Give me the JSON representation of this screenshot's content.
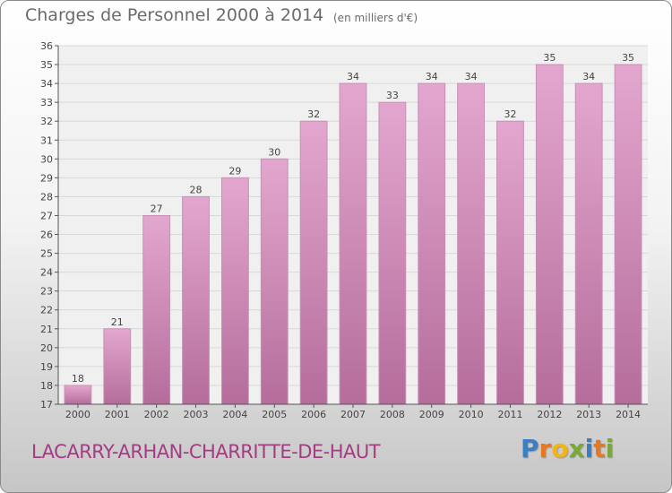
{
  "header": {
    "title": "Charges de Personnel 2000 à 2014",
    "subtitle": "(en milliers d'€)"
  },
  "footer": {
    "commune": "LACARRY-ARHAN-CHARRITTE-DE-HAUT",
    "brand": "Proxiti",
    "brand_letters": [
      {
        "char": "P",
        "color": "#3a7fc2"
      },
      {
        "char": "r",
        "color": "#e8771d"
      },
      {
        "char": "o",
        "color": "#f2b515"
      },
      {
        "char": "x",
        "color": "#7aa83a"
      },
      {
        "char": "i",
        "color": "#3a7fc2"
      },
      {
        "char": "t",
        "color": "#e8771d"
      },
      {
        "char": "i",
        "color": "#7aa83a"
      }
    ]
  },
  "colors": {
    "bar_fill_top": "#e3a7cf",
    "bar_fill_bottom": "#b56d9b",
    "bar_stroke": "#c890b6",
    "grid": "#d8d8d8",
    "axis": "#555555",
    "plot_bg": "#f0f0f0"
  },
  "chart_data": {
    "type": "bar",
    "title": "Charges de Personnel 2000 à 2014",
    "subtitle": "(en milliers d'€)",
    "categories": [
      "2000",
      "2001",
      "2002",
      "2003",
      "2004",
      "2005",
      "2006",
      "2007",
      "2008",
      "2009",
      "2010",
      "2011",
      "2012",
      "2013",
      "2014"
    ],
    "values": [
      18,
      21,
      27,
      28,
      29,
      30,
      32,
      34,
      33,
      34,
      34,
      32,
      35,
      34,
      35
    ],
    "xlabel": "",
    "ylabel": "",
    "ylim": [
      17,
      36
    ],
    "yticks": [
      17,
      18,
      19,
      20,
      21,
      22,
      23,
      24,
      25,
      26,
      27,
      28,
      29,
      30,
      31,
      32,
      33,
      34,
      35,
      36
    ],
    "grid": true,
    "legend": "none"
  }
}
